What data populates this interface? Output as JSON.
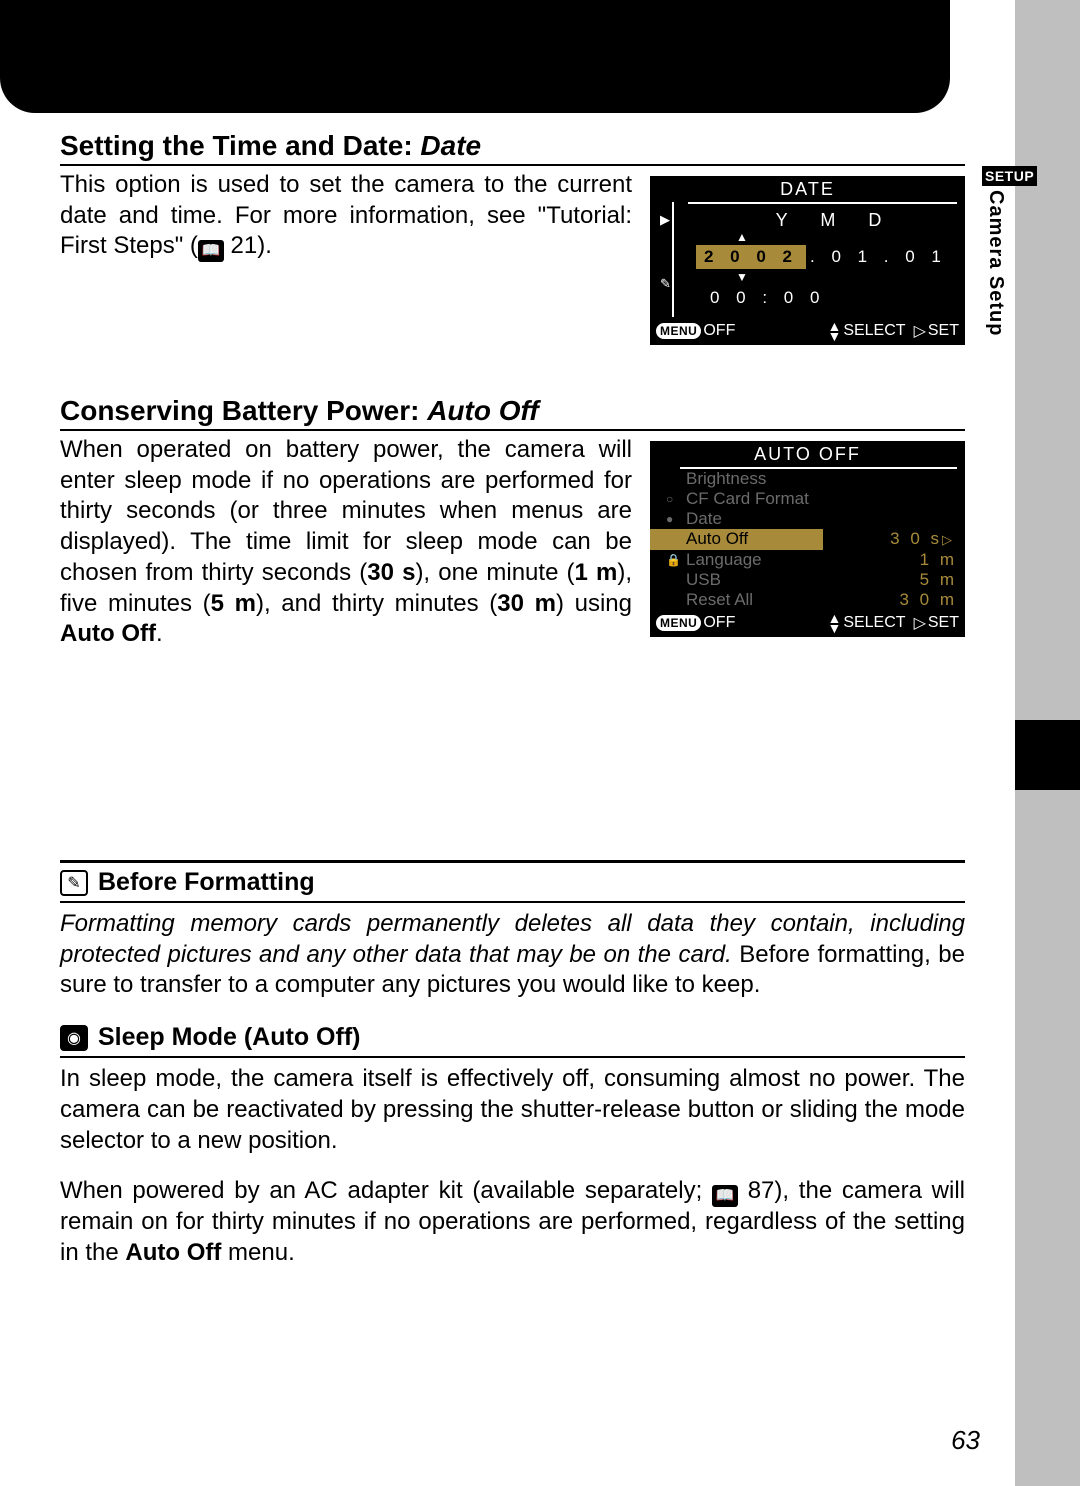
{
  "side_tab": {
    "badge": "SETUP",
    "vertical": "Camera Setup"
  },
  "section1": {
    "heading_prefix": "Setting the Time and Date: ",
    "heading_italic": "Date",
    "text_pre": "This option is used to set the camera to the current date and time.  For more information, see \"Tutorial: First Steps\" (",
    "text_post": " 21).",
    "lcd": {
      "title": "DATE",
      "ymd": "Y   M   D",
      "year": "2 0 0 2",
      "rest": ". 0 1 . 0 1",
      "time": "0 0 : 0 0",
      "footer_off": "OFF",
      "footer_select": "SELECT",
      "footer_set": "SET"
    }
  },
  "section2": {
    "heading_prefix": "Conserving Battery Power: ",
    "heading_italic": "Auto Off",
    "text": "When operated on battery power, the camera will enter sleep mode if no operations are performed for thirty seconds (or three minutes when menus are displayed).  The time limit for sleep mode can be chosen from thirty seconds (",
    "b1": "30 s",
    "t2": "), one minute (",
    "b2": "1 m",
    "t3": "), five minutes (",
    "b3": "5 m",
    "t4": "), and thirty minutes (",
    "b4": "30 m",
    "t5": ") using ",
    "b5": "Auto Off",
    "t6": ".",
    "lcd": {
      "title": "AUTO OFF",
      "items": [
        {
          "label": "Brightness",
          "val": "",
          "dim": true,
          "icon": ""
        },
        {
          "label": "CF Card Format",
          "val": "",
          "dim": true,
          "icon": "○"
        },
        {
          "label": "Date",
          "val": "",
          "dim": true,
          "icon": "●"
        },
        {
          "label": "Auto Off",
          "val": "3 0 s",
          "sel": true,
          "icon": ""
        },
        {
          "label": "Language",
          "val": "1 m",
          "dim": true,
          "icon": "🔒",
          "hl": true
        },
        {
          "label": "USB",
          "val": "5 m",
          "dim": true,
          "icon": "",
          "hl": true
        },
        {
          "label": "Reset All",
          "val": "3 0 m",
          "dim": true,
          "icon": "",
          "hl": true
        }
      ],
      "footer_off": "OFF",
      "footer_select": "SELECT",
      "footer_set": "SET"
    }
  },
  "note1": {
    "title": "Before Formatting",
    "italic": "Formatting memory cards permanently deletes all data they contain, including protected pictures and any other data that may be on the card.",
    "rest": "  Before formatting, be sure to transfer to a computer any pictures you would like to keep."
  },
  "note2": {
    "title": "Sleep Mode (Auto Off)",
    "p1": "In sleep mode, the camera itself is effectively off, consuming almost no power.  The camera can be reactivated by pressing the shutter-release button or sliding the mode selector to a new position.",
    "p2_pre": "When powered by an AC adapter kit (available separately; ",
    "p2_ref": " 87), the camera will remain on for thirty minutes if no operations are performed, regardless of the setting in the ",
    "p2_bold": "Auto Off",
    "p2_end": " menu."
  },
  "page_number": "63",
  "colors": {
    "highlight": "#a88b3a",
    "dim": "#6b6b6b",
    "gray_strip": "#bfbfbf"
  }
}
